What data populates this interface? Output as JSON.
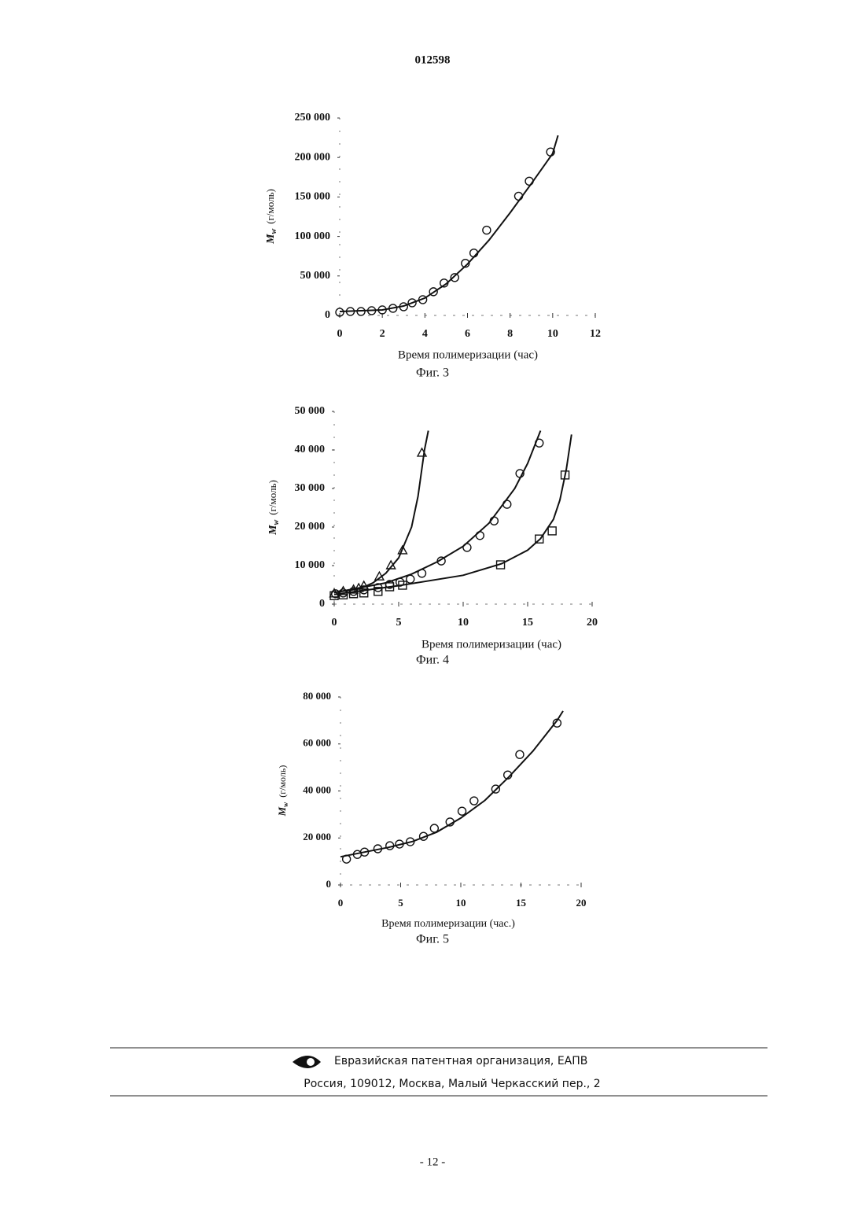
{
  "header": {
    "number": "012598"
  },
  "chart_data": [
    {
      "type": "scatter",
      "caption": "Фиг. 3",
      "xlabel": "Время полимеризации (час)",
      "ylabel": {
        "symbol": "M",
        "sub": "w",
        "unit": "(г/моль)"
      },
      "xlim": [
        0,
        12
      ],
      "xticks": [
        0,
        2,
        4,
        6,
        8,
        10,
        12
      ],
      "ylim": [
        0,
        250000
      ],
      "yticks": [
        0,
        {
          "value": 50000,
          "label": "50 000"
        },
        {
          "value": 100000,
          "label": "100 000"
        },
        {
          "value": 150000,
          "label": "150 000"
        },
        {
          "value": 200000,
          "label": "200 000"
        },
        {
          "value": 250000,
          "label": "250 000"
        }
      ],
      "series": [
        {
          "marker": "circle",
          "color": "#111",
          "x": [
            0,
            0.5,
            1,
            1.5,
            2,
            2.5,
            3,
            3.4,
            3.9,
            4.4,
            4.9,
            5.4,
            5.9,
            6.3,
            6.9,
            8.4,
            8.9,
            9.9
          ],
          "values": [
            4000,
            5000,
            5000,
            6000,
            7000,
            9000,
            11000,
            16000,
            20000,
            30000,
            41000,
            48000,
            66000,
            79000,
            108000,
            151000,
            170000,
            207000
          ]
        },
        {
          "marker": "none",
          "color": "#111",
          "x": [
            0,
            2,
            3,
            4,
            5,
            6,
            7,
            8,
            9,
            10,
            10.25
          ],
          "values": [
            5000,
            7000,
            12000,
            22000,
            40000,
            65000,
            95000,
            130000,
            167000,
            205000,
            228000
          ]
        }
      ]
    },
    {
      "type": "scatter",
      "caption": "Фиг. 4",
      "xlabel": "Время полимеризации (час)",
      "ylabel": {
        "symbol": "M",
        "sub": "w",
        "unit": "(г/моль)"
      },
      "xlim": [
        0,
        20
      ],
      "xticks": [
        0,
        5,
        10,
        15,
        20
      ],
      "ylim": [
        0,
        50000
      ],
      "yticks": [
        0,
        {
          "value": 10000,
          "label": "10 000"
        },
        {
          "value": 20000,
          "label": "20 000"
        },
        {
          "value": 30000,
          "label": "30 000"
        },
        {
          "value": 40000,
          "label": "40 000"
        },
        {
          "value": 50000,
          "label": "50 000"
        }
      ],
      "series": [
        {
          "marker": "triangle",
          "color": "#111",
          "x": [
            0,
            0.7,
            1.5,
            1.9,
            2.3,
            3.5,
            4.4,
            5.3,
            6.8
          ],
          "values": [
            2700,
            3300,
            3700,
            4100,
            4700,
            7100,
            10000,
            13900,
            39200
          ]
        },
        {
          "marker": "circle",
          "color": "#111",
          "x": [
            0.1,
            0.7,
            1.5,
            2.3,
            3.4,
            4.3,
            5.1,
            5.9,
            6.8,
            8.3,
            10.3,
            11.3,
            12.4,
            13.4,
            14.4,
            15.9
          ],
          "values": [
            2700,
            2900,
            3300,
            3700,
            4300,
            5100,
            5700,
            6500,
            8000,
            11200,
            14700,
            17800,
            21600,
            25900,
            33900,
            41800
          ]
        },
        {
          "marker": "square",
          "color": "#111",
          "x": [
            0,
            0.7,
            1.5,
            2.3,
            3.4,
            4.3,
            5.3,
            12.9,
            15.9,
            16.9,
            17.9
          ],
          "values": [
            2200,
            2400,
            2700,
            2900,
            3300,
            4500,
            4900,
            10200,
            16900,
            19000,
            33500
          ]
        },
        {
          "marker": "none",
          "color": "#111",
          "x": [
            0,
            2,
            3,
            4,
            5,
            6,
            6.5,
            7,
            7.3
          ],
          "values": [
            3000,
            4000,
            5500,
            8000,
            12000,
            20000,
            28000,
            40000,
            45000
          ]
        },
        {
          "marker": "none",
          "color": "#111",
          "x": [
            0,
            4,
            6,
            8,
            10,
            12,
            14,
            15,
            16
          ],
          "values": [
            3000,
            5500,
            7800,
            11000,
            15000,
            21000,
            30000,
            36500,
            45000
          ]
        },
        {
          "marker": "none",
          "color": "#111",
          "x": [
            0,
            5,
            10,
            13,
            15,
            16,
            17,
            17.5,
            18,
            18.4
          ],
          "values": [
            2500,
            4800,
            7500,
            10500,
            14000,
            17000,
            22000,
            27000,
            35000,
            44000
          ]
        }
      ]
    },
    {
      "type": "scatter",
      "caption": "Фиг. 5",
      "xlabel": "Время полимеризации (час.)",
      "ylabel": {
        "symbol": "M",
        "sub": "w",
        "unit": "(г/моль)"
      },
      "xlim": [
        0,
        20
      ],
      "xticks": [
        0,
        5,
        10,
        15,
        20
      ],
      "ylim": [
        0,
        80000
      ],
      "yticks": [
        0,
        {
          "value": 20000,
          "label": "20 000"
        },
        {
          "value": 40000,
          "label": "40 000"
        },
        {
          "value": 60000,
          "label": "60 000"
        },
        {
          "value": 80000,
          "label": "80 000"
        }
      ],
      "series": [
        {
          "marker": "circle",
          "color": "#111",
          "x": [
            0.5,
            1.4,
            2,
            3.1,
            4.1,
            4.9,
            5.8,
            6.9,
            7.8,
            9.1,
            10.1,
            11.1,
            12.9,
            13.9,
            14.9,
            18
          ],
          "values": [
            11000,
            13000,
            14000,
            15400,
            16700,
            17400,
            18400,
            20700,
            24100,
            26800,
            31400,
            35800,
            40800,
            46800,
            55500,
            68900
          ]
        },
        {
          "marker": "none",
          "color": "#111",
          "x": [
            0,
            2,
            4,
            6,
            8,
            10,
            12,
            14,
            16,
            18,
            18.5
          ],
          "values": [
            12000,
            14000,
            16000,
            18500,
            22500,
            28500,
            36000,
            46000,
            57000,
            70000,
            74000
          ]
        }
      ]
    }
  ],
  "footer": {
    "organization": "Евразийская патентная организация, ЕАПВ",
    "address": "Россия, 109012, Москва, Малый Черкасский пер., 2"
  },
  "page_number": "- 12 -"
}
